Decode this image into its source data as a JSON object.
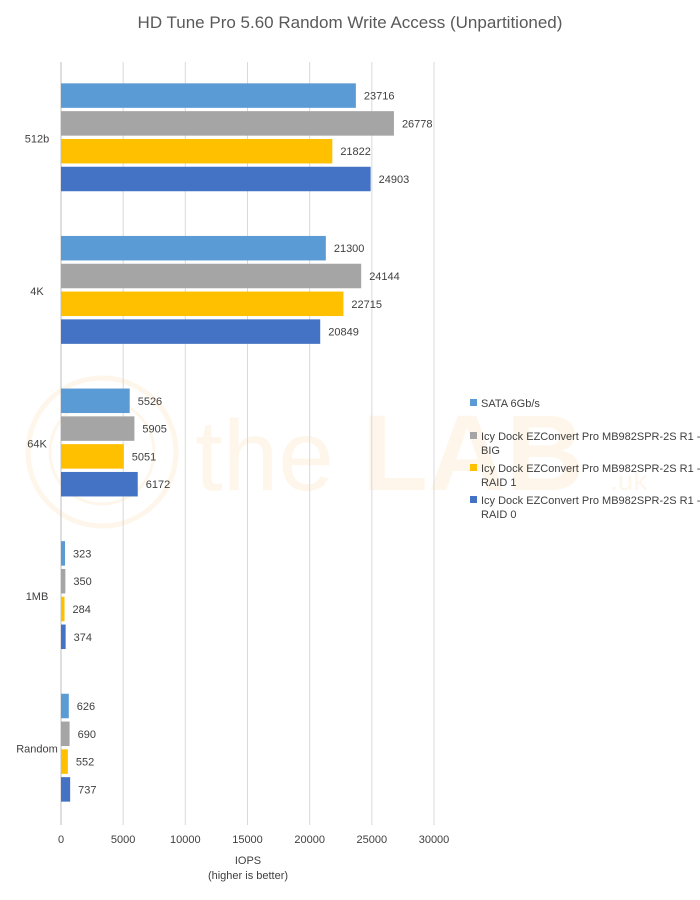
{
  "chart_data": {
    "type": "bar",
    "orientation": "horizontal",
    "title": "HD Tune Pro 5.60 Random Write Access (Unpartitioned)",
    "xlabel": "IOPS",
    "xlabel_sub": "(higher is better)",
    "ylabel": "",
    "xlim": [
      0,
      30000
    ],
    "xticks": [
      0,
      5000,
      10000,
      15000,
      20000,
      25000,
      30000
    ],
    "grid": true,
    "legend_position": "right",
    "categories": [
      "512b",
      "4K",
      "64K",
      "1MB",
      "Random"
    ],
    "series": [
      {
        "name": "SATA 6Gb/s",
        "color": "#5b9bd5",
        "values": [
          23716,
          21300,
          5526,
          323,
          626
        ]
      },
      {
        "name": "Icy Dock EZConvert Pro MB982SPR-2S R1 - BIG",
        "color": "#a5a5a5",
        "values": [
          26778,
          24144,
          5905,
          350,
          690
        ]
      },
      {
        "name": "Icy Dock EZConvert Pro MB982SPR-2S R1 - RAID 1",
        "color": "#ffc000",
        "values": [
          21822,
          22715,
          5051,
          284,
          552
        ]
      },
      {
        "name": "Icy Dock EZConvert Pro MB982SPR-2S R1 - RAID 0",
        "color": "#4472c4",
        "values": [
          24903,
          20849,
          6172,
          374,
          737
        ]
      }
    ],
    "legend_lines": [
      [
        "SATA 6Gb/s"
      ],
      [
        "Icy Dock EZConvert Pro MB982SPR-2S R1 -",
        "BIG"
      ],
      [
        "Icy Dock EZConvert Pro MB982SPR-2S R1 -",
        "RAID 1"
      ],
      [
        "Icy Dock EZConvert Pro MB982SPR-2S R1 -",
        "RAID 0"
      ]
    ]
  },
  "watermark": {
    "text_light": "the",
    "text_bold": "LAB",
    "suffix": ".uk"
  }
}
